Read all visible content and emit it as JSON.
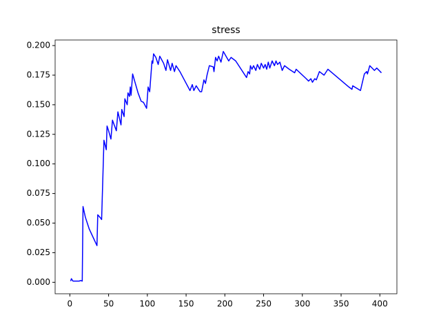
{
  "chart_data": {
    "type": "line",
    "title": "stress",
    "x": [
      1,
      2,
      4,
      8,
      12,
      14,
      16,
      17,
      20,
      25,
      30,
      35,
      36,
      40,
      41,
      44,
      47,
      48,
      50,
      53,
      55,
      60,
      62,
      66,
      67,
      70,
      71,
      74,
      75,
      77,
      78,
      79,
      81,
      88,
      92,
      95,
      99,
      101,
      103,
      106,
      107,
      108,
      111,
      114,
      116,
      121,
      124,
      126,
      130,
      132,
      135,
      137,
      142,
      155,
      158,
      160,
      163,
      168,
      170,
      173,
      175,
      177,
      180,
      185,
      186,
      188,
      190,
      192,
      195,
      198,
      205,
      208,
      214,
      228,
      230,
      232,
      233,
      235,
      237,
      240,
      242,
      245,
      247,
      250,
      252,
      254,
      256,
      258,
      261,
      264,
      266,
      268,
      271,
      274,
      277,
      283,
      290,
      292,
      305,
      308,
      311,
      313,
      316,
      318,
      322,
      328,
      333,
      360,
      364,
      365,
      375,
      380,
      383,
      384,
      387,
      393,
      396,
      402
    ],
    "series": [
      {
        "name": "stress",
        "color": "#0000ff",
        "values": [
          0.001,
          0.003,
          0.001,
          0.001,
          0.001,
          0.0015,
          0.001,
          0.064,
          0.055,
          0.045,
          0.038,
          0.031,
          0.057,
          0.054,
          0.053,
          0.12,
          0.112,
          0.132,
          0.128,
          0.121,
          0.137,
          0.128,
          0.144,
          0.133,
          0.146,
          0.14,
          0.155,
          0.15,
          0.16,
          0.157,
          0.165,
          0.158,
          0.176,
          0.16,
          0.153,
          0.152,
          0.147,
          0.165,
          0.161,
          0.187,
          0.185,
          0.193,
          0.19,
          0.184,
          0.191,
          0.185,
          0.179,
          0.188,
          0.179,
          0.185,
          0.178,
          0.183,
          0.178,
          0.162,
          0.167,
          0.162,
          0.166,
          0.161,
          0.161,
          0.171,
          0.168,
          0.175,
          0.183,
          0.182,
          0.178,
          0.19,
          0.187,
          0.191,
          0.186,
          0.195,
          0.187,
          0.19,
          0.187,
          0.173,
          0.178,
          0.176,
          0.183,
          0.18,
          0.183,
          0.179,
          0.184,
          0.18,
          0.185,
          0.181,
          0.184,
          0.18,
          0.186,
          0.181,
          0.187,
          0.183,
          0.187,
          0.184,
          0.186,
          0.179,
          0.183,
          0.18,
          0.177,
          0.18,
          0.172,
          0.17,
          0.172,
          0.169,
          0.172,
          0.171,
          0.178,
          0.175,
          0.18,
          0.165,
          0.163,
          0.166,
          0.162,
          0.176,
          0.178,
          0.176,
          0.183,
          0.179,
          0.181,
          0.177
        ]
      }
    ],
    "xlim": [
      -19,
      422
    ],
    "xticks": [
      0,
      50,
      100,
      150,
      200,
      250,
      300,
      350,
      400
    ],
    "ylim": [
      -0.0097,
      0.2047
    ],
    "yticks": [
      {
        "value": 0,
        "label": "0.000"
      },
      {
        "value": 0.025,
        "label": "0.025"
      },
      {
        "value": 0.05,
        "label": "0.050"
      },
      {
        "value": 0.075,
        "label": "0.075"
      },
      {
        "value": 0.1,
        "label": "0.100"
      },
      {
        "value": 0.125,
        "label": "0.125"
      },
      {
        "value": 0.15,
        "label": "0.150"
      },
      {
        "value": 0.175,
        "label": "0.175"
      },
      {
        "value": 0.2,
        "label": "0.200"
      }
    ]
  }
}
